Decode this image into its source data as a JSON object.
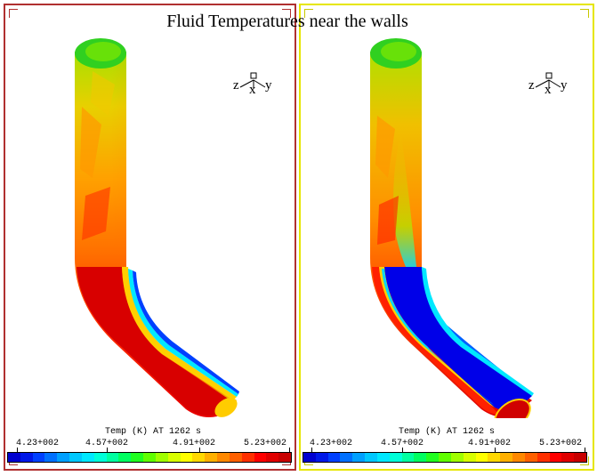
{
  "title": "Fluid Temperatures near the walls",
  "panels": [
    {
      "legend_caption": "Temp (K) AT 1262 s",
      "axes": {
        "z": "z",
        "x": "x",
        "y": "y"
      }
    },
    {
      "legend_caption": "Temp (K) AT 1262 s",
      "axes": {
        "z": "z",
        "x": "x",
        "y": "y"
      }
    }
  ],
  "colorbar": {
    "ticks": [
      "4.23+002",
      "4.57+002",
      "4.91+002",
      "5.23+002"
    ],
    "colors": [
      "#0000d0",
      "#0018e8",
      "#0040ff",
      "#0070ff",
      "#00a0ff",
      "#00c8ff",
      "#00e8ff",
      "#00ffd8",
      "#00ffa0",
      "#00ff60",
      "#20ff20",
      "#60ff00",
      "#a0ff00",
      "#d8ff00",
      "#ffff00",
      "#ffd800",
      "#ffb000",
      "#ff8800",
      "#ff6000",
      "#ff3000",
      "#ff0000",
      "#e00000",
      "#c80000"
    ]
  }
}
